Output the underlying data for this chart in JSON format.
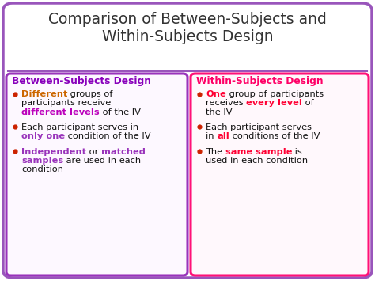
{
  "title_line1": "Comparison of Between-Subjects and",
  "title_line2": "Within-Subjects Design",
  "title_color": "#333333",
  "title_fontsize": 13.5,
  "bg_color": "#ffffff",
  "outer_border_color": "#9955bb",
  "left_header": "Between-Subjects Design",
  "right_header": "Within-Subjects Design",
  "left_header_color": "#8800bb",
  "right_header_color": "#ff0066",
  "left_box_border": "#9933bb",
  "right_box_border": "#ff1177",
  "bullet_color": "#cc2200",
  "figsize": [
    4.74,
    3.55
  ],
  "dpi": 100
}
